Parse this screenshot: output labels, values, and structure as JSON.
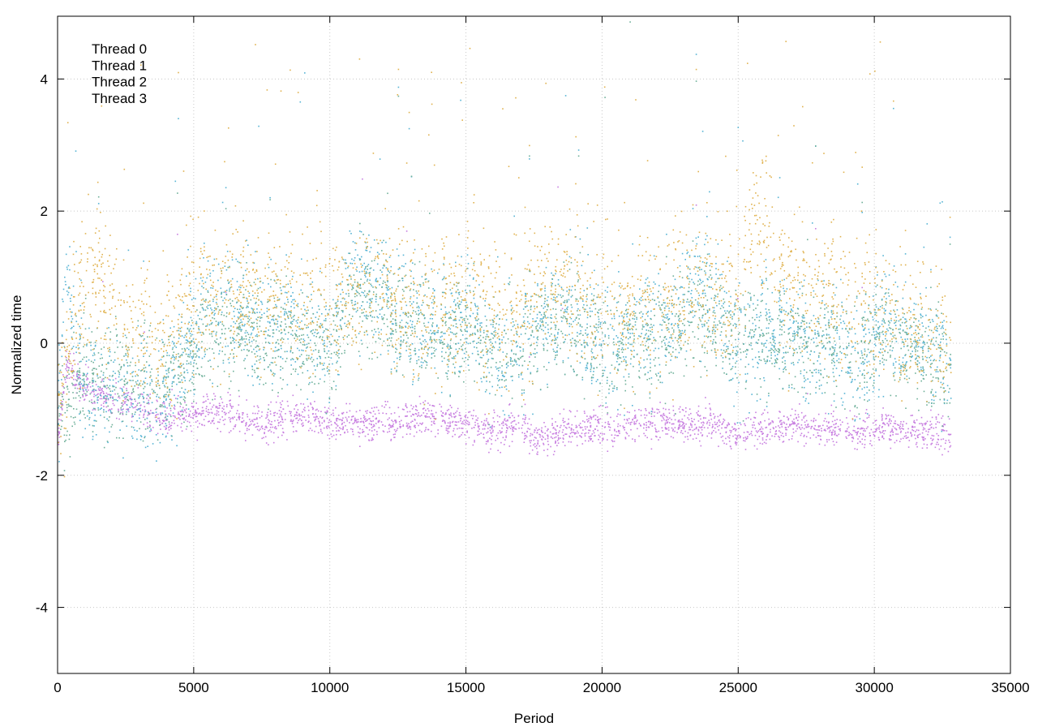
{
  "chart_data": {
    "type": "scatter",
    "xlabel": "Period",
    "ylabel": "Normalized time",
    "xlim": [
      0,
      35000
    ],
    "ylim": [
      -5,
      4.95
    ],
    "x_ticks": [
      0,
      5000,
      10000,
      15000,
      20000,
      25000,
      30000,
      35000
    ],
    "y_ticks": [
      -4,
      -2,
      0,
      2,
      4
    ],
    "grid": true,
    "legend_placement": "top-left",
    "x_extent": [
      0,
      32800
    ],
    "point_count_per_series": 2600,
    "series": [
      {
        "name": "Thread 0",
        "color": "#c87fe0",
        "noise": 0.13,
        "outlier_rate": 0.005,
        "trend": [
          [
            0,
            -1.5
          ],
          [
            300,
            -0.3
          ],
          [
            1000,
            -0.7
          ],
          [
            2500,
            -0.9
          ],
          [
            3500,
            -1.1
          ],
          [
            4300,
            -1.1
          ],
          [
            6000,
            -1.0
          ],
          [
            7000,
            -1.2
          ],
          [
            9000,
            -1.1
          ],
          [
            10000,
            -1.2
          ],
          [
            12000,
            -1.2
          ],
          [
            14000,
            -1.1
          ],
          [
            16000,
            -1.3
          ],
          [
            17000,
            -1.2
          ],
          [
            17600,
            -1.5
          ],
          [
            18500,
            -1.3
          ],
          [
            20000,
            -1.3
          ],
          [
            21000,
            -1.2
          ],
          [
            22500,
            -1.2
          ],
          [
            24000,
            -1.2
          ],
          [
            25000,
            -1.4
          ],
          [
            26000,
            -1.3
          ],
          [
            27000,
            -1.2
          ],
          [
            28000,
            -1.3
          ],
          [
            30000,
            -1.3
          ],
          [
            31000,
            -1.3
          ],
          [
            32800,
            -1.4
          ]
        ]
      },
      {
        "name": "Thread 1",
        "color": "#56b4d4",
        "noise": 0.45,
        "outlier_rate": 0.015,
        "trend": [
          [
            0,
            -1.0
          ],
          [
            300,
            1.0
          ],
          [
            1000,
            -0.6
          ],
          [
            2500,
            -0.8
          ],
          [
            3500,
            -0.9
          ],
          [
            4300,
            -0.4
          ],
          [
            5500,
            0.6
          ],
          [
            7000,
            0.4
          ],
          [
            9000,
            0.2
          ],
          [
            10000,
            0.0
          ],
          [
            10800,
            1.2
          ],
          [
            11500,
            0.8
          ],
          [
            12500,
            0.4
          ],
          [
            14000,
            0.2
          ],
          [
            15000,
            0.5
          ],
          [
            16000,
            -0.3
          ],
          [
            17500,
            0.2
          ],
          [
            18500,
            0.4
          ],
          [
            20000,
            0.0
          ],
          [
            21500,
            0.3
          ],
          [
            22500,
            0.4
          ],
          [
            23500,
            1.0
          ],
          [
            24500,
            0.3
          ],
          [
            25000,
            -0.1
          ],
          [
            26500,
            0.2
          ],
          [
            28000,
            0.0
          ],
          [
            29500,
            -0.2
          ],
          [
            30500,
            0.3
          ],
          [
            32800,
            -0.3
          ]
        ]
      },
      {
        "name": "Thread 2",
        "color": "#6fb09a",
        "noise": 0.4,
        "outlier_rate": 0.008,
        "trend": [
          [
            0,
            -1.0
          ],
          [
            1000,
            -0.5
          ],
          [
            2500,
            -0.6
          ],
          [
            3500,
            -0.7
          ],
          [
            4300,
            -0.5
          ],
          [
            5500,
            0.2
          ],
          [
            7000,
            0.2
          ],
          [
            9000,
            0.0
          ],
          [
            10000,
            -0.1
          ],
          [
            11000,
            0.7
          ],
          [
            12500,
            0.3
          ],
          [
            14000,
            0.1
          ],
          [
            15000,
            0.3
          ],
          [
            16000,
            -0.2
          ],
          [
            17500,
            0.1
          ],
          [
            18500,
            0.3
          ],
          [
            20000,
            0.0
          ],
          [
            22500,
            0.2
          ],
          [
            23500,
            0.6
          ],
          [
            25000,
            0.0
          ],
          [
            27000,
            0.1
          ],
          [
            29000,
            -0.1
          ],
          [
            30500,
            0.1
          ],
          [
            32800,
            -0.4
          ]
        ]
      },
      {
        "name": "Thread 3",
        "color": "#e0b24f",
        "noise": 0.55,
        "outlier_rate": 0.03,
        "trend": [
          [
            0,
            -1.2
          ],
          [
            600,
            0.4
          ],
          [
            1500,
            1.0
          ],
          [
            2500,
            0.2
          ],
          [
            3500,
            0.0
          ],
          [
            4300,
            0.3
          ],
          [
            5500,
            0.8
          ],
          [
            7000,
            0.7
          ],
          [
            9000,
            0.6
          ],
          [
            10000,
            0.6
          ],
          [
            11000,
            0.8
          ],
          [
            12500,
            0.6
          ],
          [
            14000,
            0.5
          ],
          [
            15000,
            0.8
          ],
          [
            16000,
            0.4
          ],
          [
            17500,
            0.6
          ],
          [
            18500,
            0.9
          ],
          [
            20000,
            0.5
          ],
          [
            22000,
            0.6
          ],
          [
            23500,
            0.7
          ],
          [
            25000,
            0.8
          ],
          [
            25600,
            2.0
          ],
          [
            26500,
            1.0
          ],
          [
            28000,
            0.8
          ],
          [
            29500,
            0.5
          ],
          [
            30500,
            0.3
          ],
          [
            32800,
            0.0
          ]
        ]
      }
    ]
  }
}
